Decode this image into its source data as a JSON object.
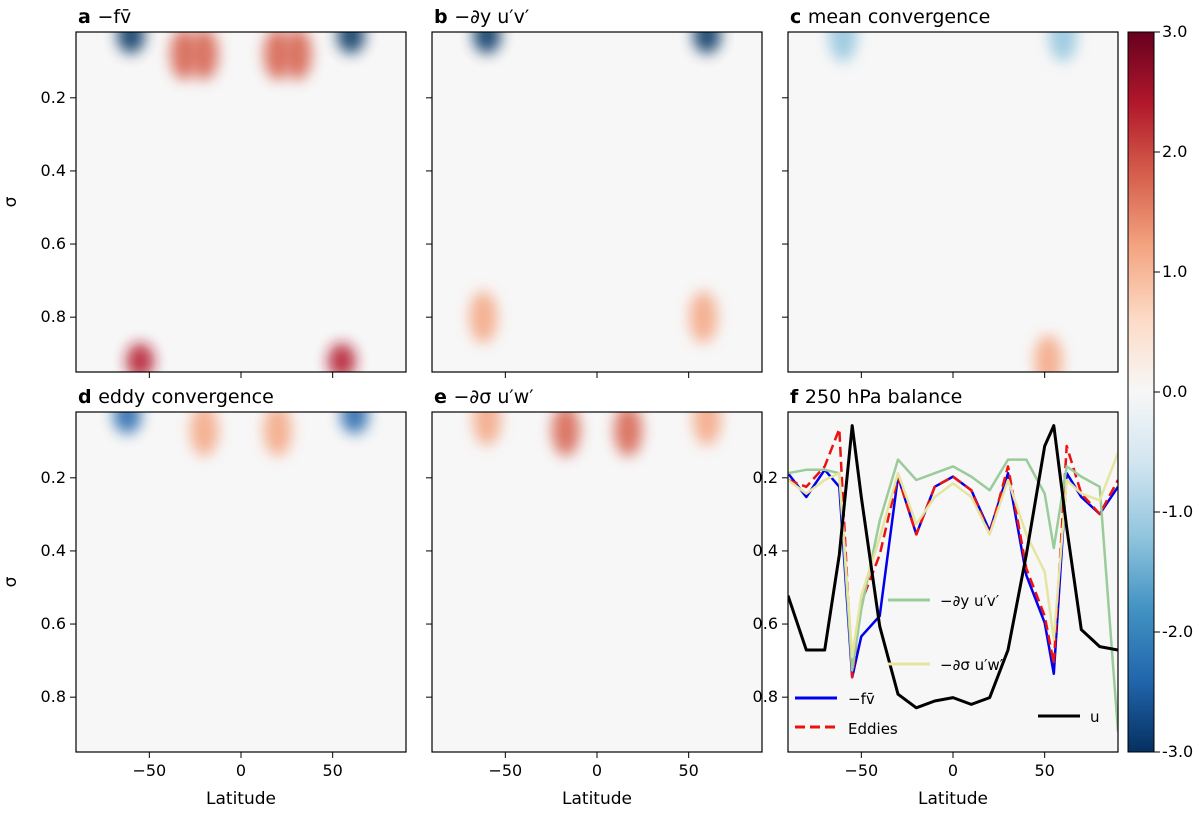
{
  "panels": [
    {
      "letter": "a",
      "title": "−fv̄"
    },
    {
      "letter": "b",
      "title": "−∂y u′v′"
    },
    {
      "letter": "c",
      "title": "mean convergence"
    },
    {
      "letter": "d",
      "title": "eddy convergence"
    },
    {
      "letter": "e",
      "title": "−∂σ u′w′"
    },
    {
      "letter": "f",
      "title": "250 hPa balance"
    }
  ],
  "axes": {
    "xlabel": "Latitude",
    "ylabel": "σ",
    "xticks": [
      -50,
      0,
      50
    ],
    "xlim": [
      -90,
      90
    ],
    "yticks": [
      0.2,
      0.4,
      0.6,
      0.8
    ],
    "ylim": [
      0.95,
      0.02
    ],
    "y_inverted": true
  },
  "colorbar": {
    "ticks": [
      "3.0",
      "2.0",
      "1.0",
      "0.0",
      "-1.0",
      "-2.0",
      "-3.0"
    ],
    "range": [
      -3,
      3
    ],
    "colormap": "RdBu_r",
    "colors": [
      "#053061",
      "#2166ac",
      "#4393c3",
      "#92c5de",
      "#d1e5f0",
      "#f7f7f7",
      "#fddbc7",
      "#f4a582",
      "#d6604d",
      "#b2182b",
      "#67001f"
    ]
  },
  "chart_data": [
    {
      "type": "heatmap",
      "panel": "a",
      "title": "−fv̄",
      "ylabel": "σ",
      "features": [
        {
          "lat": -31,
          "sigma": 0.08,
          "value": 1.8
        },
        {
          "lat": -20,
          "sigma": 0.08,
          "value": 2.0
        },
        {
          "lat": 20,
          "sigma": 0.08,
          "value": 2.0
        },
        {
          "lat": 31,
          "sigma": 0.08,
          "value": 1.8
        },
        {
          "lat": -60,
          "sigma": 0.03,
          "value": -3.0
        },
        {
          "lat": 60,
          "sigma": 0.03,
          "value": -3.0
        },
        {
          "lat": -55,
          "sigma": 0.92,
          "value": 2.5
        },
        {
          "lat": 55,
          "sigma": 0.92,
          "value": 2.5
        }
      ]
    },
    {
      "type": "heatmap",
      "panel": "b",
      "title": "−∂y u′v′",
      "features": [
        {
          "lat": -60,
          "sigma": 0.03,
          "value": -2.8
        },
        {
          "lat": 60,
          "sigma": 0.03,
          "value": -2.8
        },
        {
          "lat": -62,
          "sigma": 0.8,
          "value": 1.0
        },
        {
          "lat": 58,
          "sigma": 0.8,
          "value": 1.0
        }
      ]
    },
    {
      "type": "heatmap",
      "panel": "c",
      "title": "mean convergence",
      "features": [
        {
          "lat": -60,
          "sigma": 0.03,
          "value": -1.0
        },
        {
          "lat": 60,
          "sigma": 0.03,
          "value": -1.0
        },
        {
          "lat": 52,
          "sigma": 0.92,
          "value": 1.0
        }
      ]
    },
    {
      "type": "heatmap",
      "panel": "d",
      "title": "eddy convergence",
      "xlabel": "Latitude",
      "ylabel": "σ",
      "features": [
        {
          "lat": -62,
          "sigma": 0.03,
          "value": -2.6
        },
        {
          "lat": 62,
          "sigma": 0.03,
          "value": -2.6
        },
        {
          "lat": -20,
          "sigma": 0.07,
          "value": 1.2
        },
        {
          "lat": 20,
          "sigma": 0.07,
          "value": 1.2
        }
      ]
    },
    {
      "type": "heatmap",
      "panel": "e",
      "title": "−∂σ u′w′",
      "xlabel": "Latitude",
      "features": [
        {
          "lat": -17,
          "sigma": 0.07,
          "value": 1.8
        },
        {
          "lat": 17,
          "sigma": 0.07,
          "value": 1.8
        },
        {
          "lat": -60,
          "sigma": 0.04,
          "value": 1.2
        },
        {
          "lat": 60,
          "sigma": 0.04,
          "value": 1.2
        }
      ]
    },
    {
      "type": "line",
      "panel": "f",
      "title": "250 hPa balance",
      "xlabel": "Latitude",
      "x": [
        -90,
        -80,
        -70,
        -62,
        -55,
        -50,
        -40,
        -30,
        -20,
        -10,
        0,
        10,
        20,
        30,
        40,
        50,
        55,
        62,
        70,
        80,
        90
      ],
      "series": [
        {
          "name": "−fv̄",
          "color": "#0000ee",
          "style": "solid",
          "values": [
            0.18,
            0.25,
            0.17,
            0.22,
            0.78,
            0.66,
            0.6,
            0.19,
            0.36,
            0.22,
            0.19,
            0.23,
            0.35,
            0.18,
            0.48,
            0.62,
            0.77,
            0.18,
            0.25,
            0.3,
            0.22
          ]
        },
        {
          "name": "Eddies",
          "color": "#ee1111",
          "style": "dashed",
          "values": [
            0.2,
            0.22,
            0.16,
            0.05,
            0.78,
            0.56,
            0.42,
            0.19,
            0.36,
            0.22,
            0.19,
            0.23,
            0.36,
            0.16,
            0.46,
            0.6,
            0.74,
            0.1,
            0.24,
            0.3,
            0.2
          ]
        },
        {
          "name": "−∂y u′v′",
          "color": "#99cc99",
          "style": "solid",
          "values": [
            0.18,
            0.17,
            0.17,
            0.18,
            0.76,
            0.58,
            0.32,
            0.14,
            0.2,
            0.18,
            0.16,
            0.19,
            0.23,
            0.14,
            0.14,
            0.24,
            0.4,
            0.16,
            0.19,
            0.22,
            0.94
          ]
        },
        {
          "name": "−∂σ u′w′",
          "color": "#e5e5a0",
          "style": "solid",
          "values": [
            0.2,
            0.24,
            0.2,
            0.18,
            0.72,
            0.54,
            0.37,
            0.18,
            0.33,
            0.25,
            0.21,
            0.25,
            0.36,
            0.2,
            0.36,
            0.47,
            0.67,
            0.2,
            0.24,
            0.26,
            0.12
          ]
        },
        {
          "name": "u",
          "color": "#000000",
          "style": "solid",
          "values": [
            0.54,
            0.7,
            0.7,
            0.42,
            0.04,
            0.25,
            0.63,
            0.83,
            0.87,
            0.85,
            0.84,
            0.86,
            0.84,
            0.7,
            0.42,
            0.1,
            0.04,
            0.34,
            0.64,
            0.69,
            0.7
          ]
        }
      ]
    }
  ]
}
